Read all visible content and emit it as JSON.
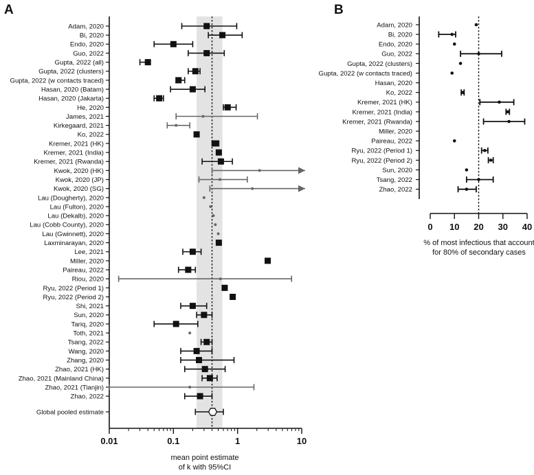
{
  "chart_data": [
    {
      "panel": "A",
      "type": "forest",
      "xscale": "log",
      "xlim": [
        0.01,
        10
      ],
      "xticks": [
        "0.01",
        "0.1",
        "1",
        "10"
      ],
      "xlabel": [
        "mean point estimate",
        "of k with 95%CI"
      ],
      "reference_line": 0.4,
      "shaded_band": [
        0.23,
        0.58
      ],
      "pooled": {
        "name": "Global pooled estimate",
        "est": 0.41,
        "lo": 0.22,
        "hi": 0.6
      },
      "studies": [
        {
          "name": "Adam, 2020",
          "est": 0.33,
          "lo": 0.135,
          "hi": 0.97,
          "marker": "square"
        },
        {
          "name": "Bi, 2020",
          "est": 0.58,
          "lo": 0.35,
          "hi": 1.18,
          "marker": "square"
        },
        {
          "name": "Endo, 2020",
          "est": 0.1,
          "lo": 0.05,
          "hi": 0.2,
          "marker": "square"
        },
        {
          "name": "Guo, 2022",
          "est": 0.33,
          "lo": 0.17,
          "hi": 0.62,
          "marker": "square"
        },
        {
          "name": "Gupta, 2022 (all)",
          "est": 0.04,
          "lo": 0.03,
          "hi": 0.04,
          "marker": "square"
        },
        {
          "name": "Gupta, 2022 (clusters)",
          "est": 0.22,
          "lo": 0.17,
          "hi": 0.26,
          "marker": "square"
        },
        {
          "name": "Gupta, 2022 (w contacts traced)",
          "est": 0.12,
          "lo": 0.11,
          "hi": 0.15,
          "marker": "square"
        },
        {
          "name": "Hasan, 2020 (Batam)",
          "est": 0.2,
          "lo": 0.09,
          "hi": 0.31,
          "marker": "square"
        },
        {
          "name": "Hasan, 2020 (Jakarta)",
          "est": 0.06,
          "lo": 0.05,
          "hi": 0.07,
          "marker": "square"
        },
        {
          "name": "He, 2020",
          "est": 0.7,
          "lo": 0.6,
          "hi": 0.95,
          "marker": "square"
        },
        {
          "name": "James, 2021",
          "est": 0.29,
          "lo": 0.11,
          "hi": 2.04,
          "marker": "dot"
        },
        {
          "name": "Kirkegaard, 2021",
          "est": 0.11,
          "lo": 0.08,
          "hi": 0.18,
          "marker": "dot"
        },
        {
          "name": "Ko, 2022",
          "est": 0.23,
          "lo": null,
          "hi": null,
          "marker": "square"
        },
        {
          "name": "Kremer, 2021 (HK)",
          "est": 0.45,
          "lo": 0.4,
          "hi": 0.51,
          "marker": "square"
        },
        {
          "name": "Kremer, 2021 (India)",
          "est": 0.51,
          "lo": null,
          "hi": null,
          "marker": "square"
        },
        {
          "name": "Kremer, 2021 (Rwanda)",
          "est": 0.55,
          "lo": 0.28,
          "hi": 0.83,
          "marker": "square"
        },
        {
          "name": "Kwok, 2020 (HK)",
          "est": 2.2,
          "lo": 0.4,
          "hi": null,
          "marker": "dot",
          "arrow": true
        },
        {
          "name": "Kwok, 2020 (JP)",
          "est": 0.53,
          "lo": 0.25,
          "hi": 1.42,
          "marker": "dot"
        },
        {
          "name": "Kwok, 2020 (SG)",
          "est": 1.7,
          "lo": 0.37,
          "hi": null,
          "marker": "dot",
          "arrow": true
        },
        {
          "name": "Lau (Dougherty), 2020",
          "est": 0.3,
          "lo": null,
          "hi": null,
          "marker": "dot"
        },
        {
          "name": "Lau (Fulton), 2020",
          "est": 0.38,
          "lo": null,
          "hi": null,
          "marker": "dot"
        },
        {
          "name": "Lau (Dekalb), 2020",
          "est": 0.42,
          "lo": null,
          "hi": null,
          "marker": "dot"
        },
        {
          "name": "Lau (Cobb County), 2020",
          "est": 0.45,
          "lo": null,
          "hi": null,
          "marker": "dot"
        },
        {
          "name": "Lau (Gwinnett), 2020",
          "est": 0.5,
          "lo": null,
          "hi": null,
          "marker": "dot"
        },
        {
          "name": "Laxminarayan, 2020",
          "est": 0.51,
          "lo": null,
          "hi": null,
          "marker": "square"
        },
        {
          "name": "Lee, 2021",
          "est": 0.2,
          "lo": 0.14,
          "hi": 0.27,
          "marker": "square"
        },
        {
          "name": "Miller, 2020",
          "est": 2.95,
          "lo": null,
          "hi": null,
          "marker": "square"
        },
        {
          "name": "Paireau, 2022",
          "est": 0.17,
          "lo": 0.12,
          "hi": 0.22,
          "marker": "square"
        },
        {
          "name": "Riou, 2020",
          "est": 0.54,
          "lo": 0.014,
          "hi": 6.95,
          "marker": "dot"
        },
        {
          "name": "Ryu, 2022 (Period 1)",
          "est": 0.63,
          "lo": null,
          "hi": null,
          "marker": "square"
        },
        {
          "name": "Ryu, 2022 (Period 2)",
          "est": 0.84,
          "lo": null,
          "hi": null,
          "marker": "square"
        },
        {
          "name": "Shi, 2021",
          "est": 0.2,
          "lo": 0.13,
          "hi": 0.33,
          "marker": "square"
        },
        {
          "name": "Sun, 2020",
          "est": 0.3,
          "lo": 0.23,
          "hi": 0.4,
          "marker": "square"
        },
        {
          "name": "Tariq, 2020",
          "est": 0.11,
          "lo": 0.05,
          "hi": 0.24,
          "marker": "square"
        },
        {
          "name": "Toth, 2021",
          "est": 0.18,
          "lo": null,
          "hi": null,
          "marker": "dot"
        },
        {
          "name": "Tsang, 2022",
          "est": 0.33,
          "lo": 0.27,
          "hi": 0.4,
          "marker": "square"
        },
        {
          "name": "Wang, 2020",
          "est": 0.23,
          "lo": 0.13,
          "hi": 0.4,
          "marker": "square"
        },
        {
          "name": "Zhang, 2020",
          "est": 0.25,
          "lo": 0.13,
          "hi": 0.88,
          "marker": "square"
        },
        {
          "name": "Zhao, 2021 (HK)",
          "est": 0.31,
          "lo": 0.15,
          "hi": 0.64,
          "marker": "square"
        },
        {
          "name": "Zhao, 2021 (Mainland China)",
          "est": 0.37,
          "lo": 0.28,
          "hi": 0.48,
          "marker": "square"
        },
        {
          "name": "Zhao, 2021 (Tianjin)",
          "est": 0.18,
          "lo": 0.01,
          "hi": 1.8,
          "marker": "dot"
        },
        {
          "name": "Zhao, 2022",
          "est": 0.26,
          "lo": 0.15,
          "hi": 0.4,
          "marker": "square"
        }
      ]
    },
    {
      "panel": "B",
      "type": "forest",
      "xscale": "linear",
      "xlim": [
        0,
        40
      ],
      "xticks": [
        "0",
        "10",
        "20",
        "30",
        "40"
      ],
      "xlabel": [
        "% of most infectious that account",
        "for 80% of secondary cases"
      ],
      "reference_line": 20,
      "studies": [
        {
          "name": "Adam, 2020",
          "est": 19,
          "lo": null,
          "hi": null
        },
        {
          "name": "Bi, 2020",
          "est": 9,
          "lo": 3.5,
          "hi": 10.5
        },
        {
          "name": "Endo, 2020",
          "est": 10,
          "lo": null,
          "hi": null
        },
        {
          "name": "Guo, 2022",
          "est": 20,
          "lo": 12.5,
          "hi": 29.5
        },
        {
          "name": "Gupta, 2022 (clusters)",
          "est": 12.5,
          "lo": null,
          "hi": null
        },
        {
          "name": "Gupta, 2022 (w contacts traced)",
          "est": 9,
          "lo": null,
          "hi": null
        },
        {
          "name": "Hasan, 2020",
          "est": null,
          "lo": null,
          "hi": null
        },
        {
          "name": "Ko, 2022",
          "est": 13.5,
          "lo": 12.8,
          "hi": 14
        },
        {
          "name": "Kremer, 2021 (HK)",
          "est": 28.5,
          "lo": 20.5,
          "hi": 34.5
        },
        {
          "name": "Kremer, 2021 (India)",
          "est": 32,
          "lo": 31.3,
          "hi": 32.7
        },
        {
          "name": "Kremer, 2021 (Rwanda)",
          "est": 32.5,
          "lo": 22,
          "hi": 39
        },
        {
          "name": "Miller, 2020",
          "est": null,
          "lo": null,
          "hi": null
        },
        {
          "name": "Paireau, 2022",
          "est": 10,
          "lo": null,
          "hi": null
        },
        {
          "name": "Ryu, 2022 (Period 1)",
          "est": 22.5,
          "lo": 21.2,
          "hi": 23.8
        },
        {
          "name": "Ryu, 2022 (Period 2)",
          "est": 25,
          "lo": 24,
          "hi": 26
        },
        {
          "name": "Sun, 2020",
          "est": 15,
          "lo": null,
          "hi": null
        },
        {
          "name": "Tsang, 2022",
          "est": 20,
          "lo": 15,
          "hi": 26
        },
        {
          "name": "Zhao, 2022",
          "est": 15,
          "lo": 11.5,
          "hi": 19
        }
      ]
    }
  ],
  "panel_labels": {
    "a": "A",
    "b": "B"
  }
}
